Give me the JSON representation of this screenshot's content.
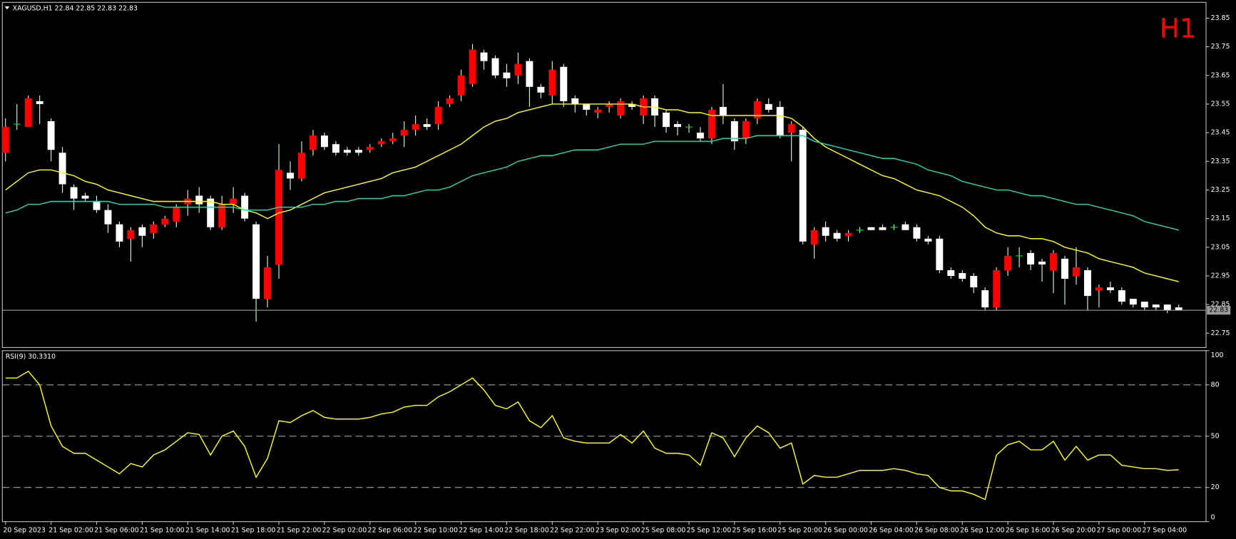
{
  "chart_data": [
    {
      "type": "candlestick",
      "title": "XAGUSD,H1  22.84 22.85 22.83 22.83",
      "timeframe": "H1",
      "categories": [
        "20 Sep 2023",
        null,
        null,
        null,
        "21 Sep 02:00",
        null,
        null,
        null,
        "21 Sep 06:00",
        null,
        null,
        null,
        "21 Sep 10:00",
        null,
        null,
        null,
        "21 Sep 14:00",
        null,
        null,
        null,
        "21 Sep 18:00",
        null,
        null,
        null,
        "21 Sep 22:00",
        null,
        null,
        null,
        "22 Sep 02:00",
        null,
        null,
        null,
        "22 Sep 06:00",
        null,
        null,
        null,
        "22 Sep 10:00",
        null,
        null,
        null,
        "22 Sep 14:00",
        null,
        null,
        null,
        "22 Sep 18:00",
        null,
        null,
        null,
        "22 Sep 22:00",
        null,
        null,
        null,
        "23 Sep 02:00",
        null,
        null,
        null,
        "25 Sep 08:00",
        null,
        null,
        null,
        "25 Sep 12:00",
        null,
        null,
        null,
        "25 Sep 16:00",
        null,
        null,
        null,
        "25 Sep 20:00",
        null,
        null,
        null,
        "26 Sep 00:00",
        null,
        null,
        null,
        "26 Sep 04:00",
        null,
        null,
        null,
        "26 Sep 08:00",
        null,
        null,
        null,
        "26 Sep 12:00",
        null,
        null,
        null,
        "26 Sep 16:00",
        null,
        null,
        null,
        "26 Sep 20:00",
        null,
        null,
        null,
        "27 Sep 00:00",
        null,
        null,
        null,
        "27 Sep 04:00",
        null,
        null,
        null
      ],
      "open": [
        23.38,
        23.48,
        23.47,
        23.56,
        23.49,
        23.38,
        23.26,
        23.23,
        23.21,
        23.18,
        23.13,
        23.08,
        23.12,
        23.1,
        23.13,
        23.14,
        23.2,
        23.23,
        23.22,
        23.12,
        23.2,
        23.23,
        23.13,
        22.87,
        22.99,
        23.31,
        23.29,
        23.39,
        23.44,
        23.41,
        23.39,
        23.39,
        23.39,
        23.41,
        23.42,
        23.44,
        23.46,
        23.48,
        23.48,
        23.55,
        23.58,
        23.62,
        23.73,
        23.71,
        23.66,
        23.65,
        23.7,
        23.61,
        23.58,
        23.68,
        23.57,
        23.55,
        23.52,
        23.54,
        23.51,
        23.55,
        23.51,
        23.57,
        23.52,
        23.48,
        23.47,
        23.45,
        23.43,
        23.54,
        23.49,
        23.43,
        23.5,
        23.55,
        23.54,
        23.45,
        23.46,
        23.06,
        23.12,
        23.1,
        23.09,
        23.11,
        23.12,
        23.12,
        23.12,
        23.13,
        23.12,
        23.08,
        23.08,
        22.97,
        22.96,
        22.95,
        22.9,
        22.84,
        22.97,
        23.02,
        23.03,
        23.0,
        22.97,
        23.01,
        22.95,
        22.97,
        22.9,
        22.91,
        22.9,
        22.87,
        22.86,
        22.85,
        22.85,
        22.84
      ],
      "high": [
        23.5,
        23.55,
        23.58,
        23.58,
        23.5,
        23.4,
        23.27,
        23.24,
        23.23,
        23.2,
        23.14,
        23.12,
        23.13,
        23.14,
        23.16,
        23.2,
        23.25,
        23.26,
        23.23,
        23.23,
        23.26,
        23.24,
        23.14,
        23.02,
        23.41,
        23.35,
        23.42,
        23.46,
        23.45,
        23.42,
        23.4,
        23.4,
        23.41,
        23.43,
        23.45,
        23.49,
        23.51,
        23.5,
        23.56,
        23.58,
        23.67,
        23.76,
        23.74,
        23.72,
        23.69,
        23.73,
        23.71,
        23.62,
        23.7,
        23.69,
        23.58,
        23.55,
        23.54,
        23.56,
        23.57,
        23.56,
        23.58,
        23.58,
        23.53,
        23.49,
        23.48,
        23.47,
        23.54,
        23.62,
        23.5,
        23.5,
        23.57,
        23.57,
        23.56,
        23.49,
        23.47,
        23.12,
        23.14,
        23.11,
        23.11,
        23.12,
        23.12,
        23.13,
        23.13,
        23.14,
        23.13,
        23.09,
        23.09,
        22.98,
        22.97,
        22.96,
        22.91,
        22.98,
        23.05,
        23.05,
        23.04,
        23.01,
        23.04,
        23.02,
        23.05,
        22.98,
        22.92,
        22.93,
        22.91,
        22.87,
        22.86,
        22.85,
        22.85,
        22.85
      ],
      "low": [
        23.35,
        23.46,
        23.47,
        23.48,
        23.35,
        23.24,
        23.18,
        23.21,
        23.17,
        23.1,
        23.05,
        23.0,
        23.05,
        23.08,
        23.12,
        23.12,
        23.16,
        23.17,
        23.11,
        23.11,
        23.17,
        23.14,
        22.79,
        22.84,
        22.94,
        23.25,
        23.28,
        23.37,
        23.39,
        23.37,
        23.37,
        23.37,
        23.38,
        23.4,
        23.41,
        23.4,
        23.44,
        23.46,
        23.46,
        23.54,
        23.56,
        23.61,
        23.67,
        23.64,
        23.61,
        23.62,
        23.54,
        23.57,
        23.55,
        23.54,
        23.52,
        23.51,
        23.5,
        23.52,
        23.5,
        23.53,
        23.48,
        23.47,
        23.45,
        23.44,
        23.45,
        23.42,
        23.41,
        23.48,
        23.39,
        23.41,
        23.48,
        23.52,
        23.43,
        23.35,
        23.06,
        23.01,
        23.07,
        23.07,
        23.07,
        23.1,
        23.11,
        23.11,
        23.11,
        23.11,
        23.07,
        23.06,
        22.96,
        22.94,
        22.93,
        22.89,
        22.83,
        22.83,
        22.95,
        22.98,
        22.97,
        22.93,
        22.89,
        22.85,
        22.92,
        22.83,
        22.84,
        22.89,
        22.85,
        22.84,
        22.83,
        22.83,
        22.82,
        22.83
      ],
      "close": [
        23.47,
        23.48,
        23.57,
        23.55,
        23.39,
        23.27,
        23.22,
        23.22,
        23.18,
        23.13,
        23.07,
        23.11,
        23.09,
        23.13,
        23.15,
        23.19,
        23.22,
        23.2,
        23.12,
        23.2,
        23.22,
        23.15,
        22.87,
        22.98,
        23.32,
        23.29,
        23.38,
        23.44,
        23.4,
        23.38,
        23.38,
        23.38,
        23.4,
        23.42,
        23.43,
        23.46,
        23.48,
        23.47,
        23.54,
        23.57,
        23.65,
        23.74,
        23.7,
        23.65,
        23.64,
        23.69,
        23.61,
        23.59,
        23.67,
        23.56,
        23.55,
        23.53,
        23.53,
        23.55,
        23.56,
        23.54,
        23.57,
        23.51,
        23.47,
        23.47,
        23.47,
        23.43,
        23.53,
        23.51,
        23.42,
        23.49,
        23.56,
        23.53,
        23.44,
        23.48,
        23.07,
        23.11,
        23.09,
        23.08,
        23.1,
        23.11,
        23.11,
        23.11,
        23.12,
        23.11,
        23.08,
        23.07,
        22.97,
        22.95,
        22.94,
        22.91,
        22.84,
        22.97,
        23.02,
        23.02,
        22.99,
        22.99,
        23.03,
        22.94,
        22.98,
        22.88,
        22.91,
        22.9,
        22.86,
        22.85,
        22.84,
        22.84,
        22.83,
        22.83
      ],
      "up_color": "#ff0000",
      "down_color": "#ffffff",
      "wick_color": "#d8ffd8",
      "doji_color": "#00e000",
      "series": [
        {
          "color": "#ffff00",
          "values": [
            23.25,
            23.28,
            23.31,
            23.32,
            23.32,
            23.31,
            23.3,
            23.28,
            23.27,
            23.25,
            23.24,
            23.23,
            23.22,
            23.21,
            23.21,
            23.21,
            23.21,
            23.21,
            23.21,
            23.2,
            23.2,
            23.18,
            23.17,
            23.15,
            23.17,
            23.18,
            23.2,
            23.22,
            23.24,
            23.25,
            23.26,
            23.27,
            23.28,
            23.29,
            23.31,
            23.32,
            23.33,
            23.35,
            23.37,
            23.39,
            23.41,
            23.44,
            23.47,
            23.49,
            23.5,
            23.52,
            23.53,
            23.54,
            23.55,
            23.55,
            23.55,
            23.55,
            23.55,
            23.55,
            23.55,
            23.55,
            23.54,
            23.54,
            23.53,
            23.53,
            23.52,
            23.52,
            23.51,
            23.51,
            23.51,
            23.51,
            23.51,
            23.51,
            23.51,
            23.5,
            23.47,
            23.43,
            23.4,
            23.38,
            23.36,
            23.34,
            23.32,
            23.3,
            23.29,
            23.27,
            23.25,
            23.24,
            23.23,
            23.21,
            23.19,
            23.16,
            23.12,
            23.1,
            23.09,
            23.09,
            23.08,
            23.08,
            23.07,
            23.05,
            23.04,
            23.03,
            23.01,
            23.0,
            22.99,
            22.98,
            22.96,
            22.95,
            22.94,
            22.93
          ]
        },
        {
          "color": "#22d6b0",
          "values": [
            23.17,
            23.18,
            23.2,
            23.2,
            23.21,
            23.21,
            23.21,
            23.21,
            23.21,
            23.21,
            23.2,
            23.2,
            23.2,
            23.2,
            23.19,
            23.19,
            23.19,
            23.19,
            23.19,
            23.19,
            23.19,
            23.18,
            23.18,
            23.18,
            23.19,
            23.19,
            23.19,
            23.2,
            23.2,
            23.21,
            23.21,
            23.22,
            23.22,
            23.22,
            23.23,
            23.23,
            23.24,
            23.25,
            23.25,
            23.26,
            23.28,
            23.3,
            23.31,
            23.32,
            23.33,
            23.35,
            23.36,
            23.37,
            23.37,
            23.38,
            23.39,
            23.39,
            23.39,
            23.4,
            23.41,
            23.41,
            23.41,
            23.42,
            23.42,
            23.42,
            23.42,
            23.42,
            23.42,
            23.43,
            23.43,
            23.43,
            23.44,
            23.44,
            23.44,
            23.44,
            23.44,
            23.42,
            23.41,
            23.4,
            23.39,
            23.38,
            23.37,
            23.36,
            23.36,
            23.35,
            23.34,
            23.32,
            23.31,
            23.3,
            23.28,
            23.27,
            23.26,
            23.25,
            23.25,
            23.24,
            23.23,
            23.23,
            23.22,
            23.21,
            23.2,
            23.2,
            23.19,
            23.18,
            23.17,
            23.16,
            23.14,
            23.13,
            23.12,
            23.11
          ]
        }
      ],
      "ylim": [
        22.7,
        23.905
      ],
      "yticks": [
        23.85,
        23.75,
        23.65,
        23.55,
        23.45,
        23.35,
        23.25,
        23.15,
        23.05,
        22.95,
        22.85,
        22.75
      ]
    },
    {
      "type": "line",
      "title": "RSI(9) 30.3310",
      "color": "#ffff00",
      "values": [
        84,
        84,
        88,
        80,
        56,
        44,
        40,
        40,
        36,
        32,
        28,
        34,
        32,
        39,
        42,
        47,
        52,
        51,
        39,
        50,
        53,
        44,
        26,
        37,
        59,
        58,
        62,
        65,
        61,
        60,
        60,
        60,
        61,
        63,
        64,
        67,
        68,
        68,
        73,
        76,
        80,
        84,
        77,
        68,
        66,
        70,
        59,
        55,
        62,
        49,
        47,
        46,
        46,
        46,
        51,
        46,
        53,
        43,
        40,
        40,
        39,
        33,
        52,
        49,
        38,
        49,
        56,
        52,
        43,
        46,
        22,
        27,
        26,
        26,
        28,
        30,
        30,
        30,
        31,
        30,
        28,
        27,
        20,
        18,
        18,
        16,
        13,
        39,
        45,
        47,
        42,
        42,
        47,
        36,
        44,
        36,
        39,
        39,
        33,
        32,
        31,
        31,
        30,
        30.331
      ],
      "ylim": [
        0,
        100
      ],
      "yticks": [
        100,
        80,
        50,
        20,
        0
      ],
      "levels": [
        80,
        50,
        20
      ]
    }
  ]
}
